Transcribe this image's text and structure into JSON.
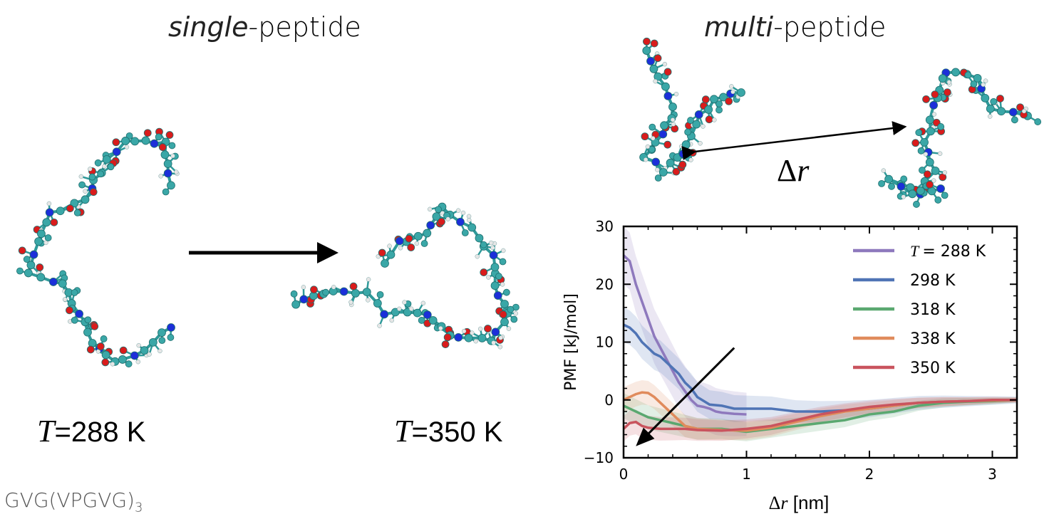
{
  "left_panel": {
    "heading_italic": "single",
    "heading_rest": "-peptide",
    "temp_left_symbol": "T",
    "temp_left_value": "=288 K",
    "temp_right_symbol": "T",
    "temp_right_value": "=350 K",
    "sequence_main": "GVG(VPGVG)",
    "sequence_sub": "3"
  },
  "right_panel": {
    "heading_italic": "multi",
    "heading_rest": "-peptide",
    "delta_symbol": "Δ",
    "delta_var": "r"
  },
  "colors": {
    "carbon": "#3aa7a7",
    "oxygen": "#d91c1c",
    "nitrogen": "#1c2fd9",
    "hydrogen": "#e6e6e6",
    "bond": "#2f9a9a"
  },
  "chart_data": {
    "type": "line",
    "xlabel_symbol": "Δ",
    "xlabel_var": "r",
    "xlabel_unit": " [nm]",
    "ylabel": "PMF [kJ/mol]",
    "xlim": [
      0,
      3.2
    ],
    "ylim": [
      -10,
      30
    ],
    "xticks": [
      "0",
      "1",
      "2",
      "3"
    ],
    "yticks": [
      "30",
      "20",
      "10",
      "0",
      "−10"
    ],
    "legend_position": "top-right",
    "legend_first_prefix": "T",
    "series": [
      {
        "name": "= 288 K",
        "color": "#8e79bd",
        "x": [
          0,
          0.05,
          0.1,
          0.15,
          0.2,
          0.25,
          0.3,
          0.35,
          0.4,
          0.45,
          0.5,
          0.55,
          0.6,
          0.65,
          0.7,
          0.75,
          0.8,
          0.9,
          1.0
        ],
        "y": [
          25,
          24,
          20,
          17,
          14,
          11,
          9,
          7,
          5,
          3,
          1.5,
          0,
          -1,
          -1.2,
          -1.5,
          -2,
          -2.2,
          -2.4,
          -2.5
        ]
      },
      {
        "name": "298 K",
        "color": "#4f74b5",
        "x": [
          0,
          0.05,
          0.1,
          0.15,
          0.2,
          0.25,
          0.3,
          0.35,
          0.4,
          0.45,
          0.5,
          0.55,
          0.6,
          0.7,
          0.8,
          0.9,
          1.0,
          1.2,
          1.4,
          1.6,
          1.8,
          2.0,
          2.2,
          2.4,
          2.6,
          2.8,
          3.0,
          3.2
        ],
        "y": [
          13,
          12.5,
          11.5,
          10,
          9,
          8,
          7.5,
          6.5,
          5.5,
          4.5,
          3,
          2,
          0.5,
          -0.8,
          -1,
          -1.5,
          -1.5,
          -1.5,
          -2,
          -2,
          -1.8,
          -1.5,
          -1,
          -0.5,
          -0.3,
          -0.2,
          -0.1,
          0
        ]
      },
      {
        "name": "318 K",
        "color": "#5aa870",
        "x": [
          0,
          0.05,
          0.1,
          0.15,
          0.2,
          0.3,
          0.4,
          0.5,
          0.6,
          0.8,
          1.0,
          1.2,
          1.4,
          1.6,
          1.8,
          2.0,
          2.2,
          2.4,
          2.6,
          2.8,
          3.0,
          3.2
        ],
        "y": [
          -1,
          -1.5,
          -2,
          -2.5,
          -3,
          -3.5,
          -4,
          -4.5,
          -5,
          -5,
          -5.5,
          -5,
          -4.5,
          -4,
          -3.5,
          -2.5,
          -2,
          -1,
          -0.5,
          -0.3,
          -0.2,
          0
        ]
      },
      {
        "name": "338 K",
        "color": "#e08b5c",
        "x": [
          0,
          0.05,
          0.1,
          0.15,
          0.2,
          0.25,
          0.3,
          0.35,
          0.4,
          0.45,
          0.5,
          0.6,
          0.8,
          1.0,
          1.2,
          1.4,
          1.6,
          1.8,
          2.0,
          2.2,
          2.4,
          2.6,
          2.8,
          3.0,
          3.2
        ],
        "y": [
          0,
          0.5,
          1,
          1.3,
          1.2,
          0.5,
          -0.5,
          -1.5,
          -2.5,
          -3.5,
          -4.5,
          -5,
          -5.2,
          -5.3,
          -4.8,
          -3.8,
          -2.8,
          -2,
          -1.5,
          -1,
          -0.5,
          -0.3,
          -0.2,
          -0.1,
          0
        ]
      },
      {
        "name": "350 K",
        "color": "#c9545e",
        "x": [
          0,
          0.05,
          0.1,
          0.15,
          0.2,
          0.3,
          0.4,
          0.5,
          0.6,
          0.8,
          1.0,
          1.2,
          1.4,
          1.6,
          1.8,
          2.0,
          2.2,
          2.4,
          2.6,
          2.8,
          3.0,
          3.2
        ],
        "y": [
          -5,
          -4,
          -3.8,
          -4.5,
          -4.8,
          -5,
          -5,
          -5,
          -5.2,
          -5.3,
          -5,
          -4.5,
          -3.5,
          -2.5,
          -1.8,
          -1.2,
          -0.8,
          -0.5,
          -0.3,
          -0.2,
          0,
          0
        ]
      }
    ]
  }
}
